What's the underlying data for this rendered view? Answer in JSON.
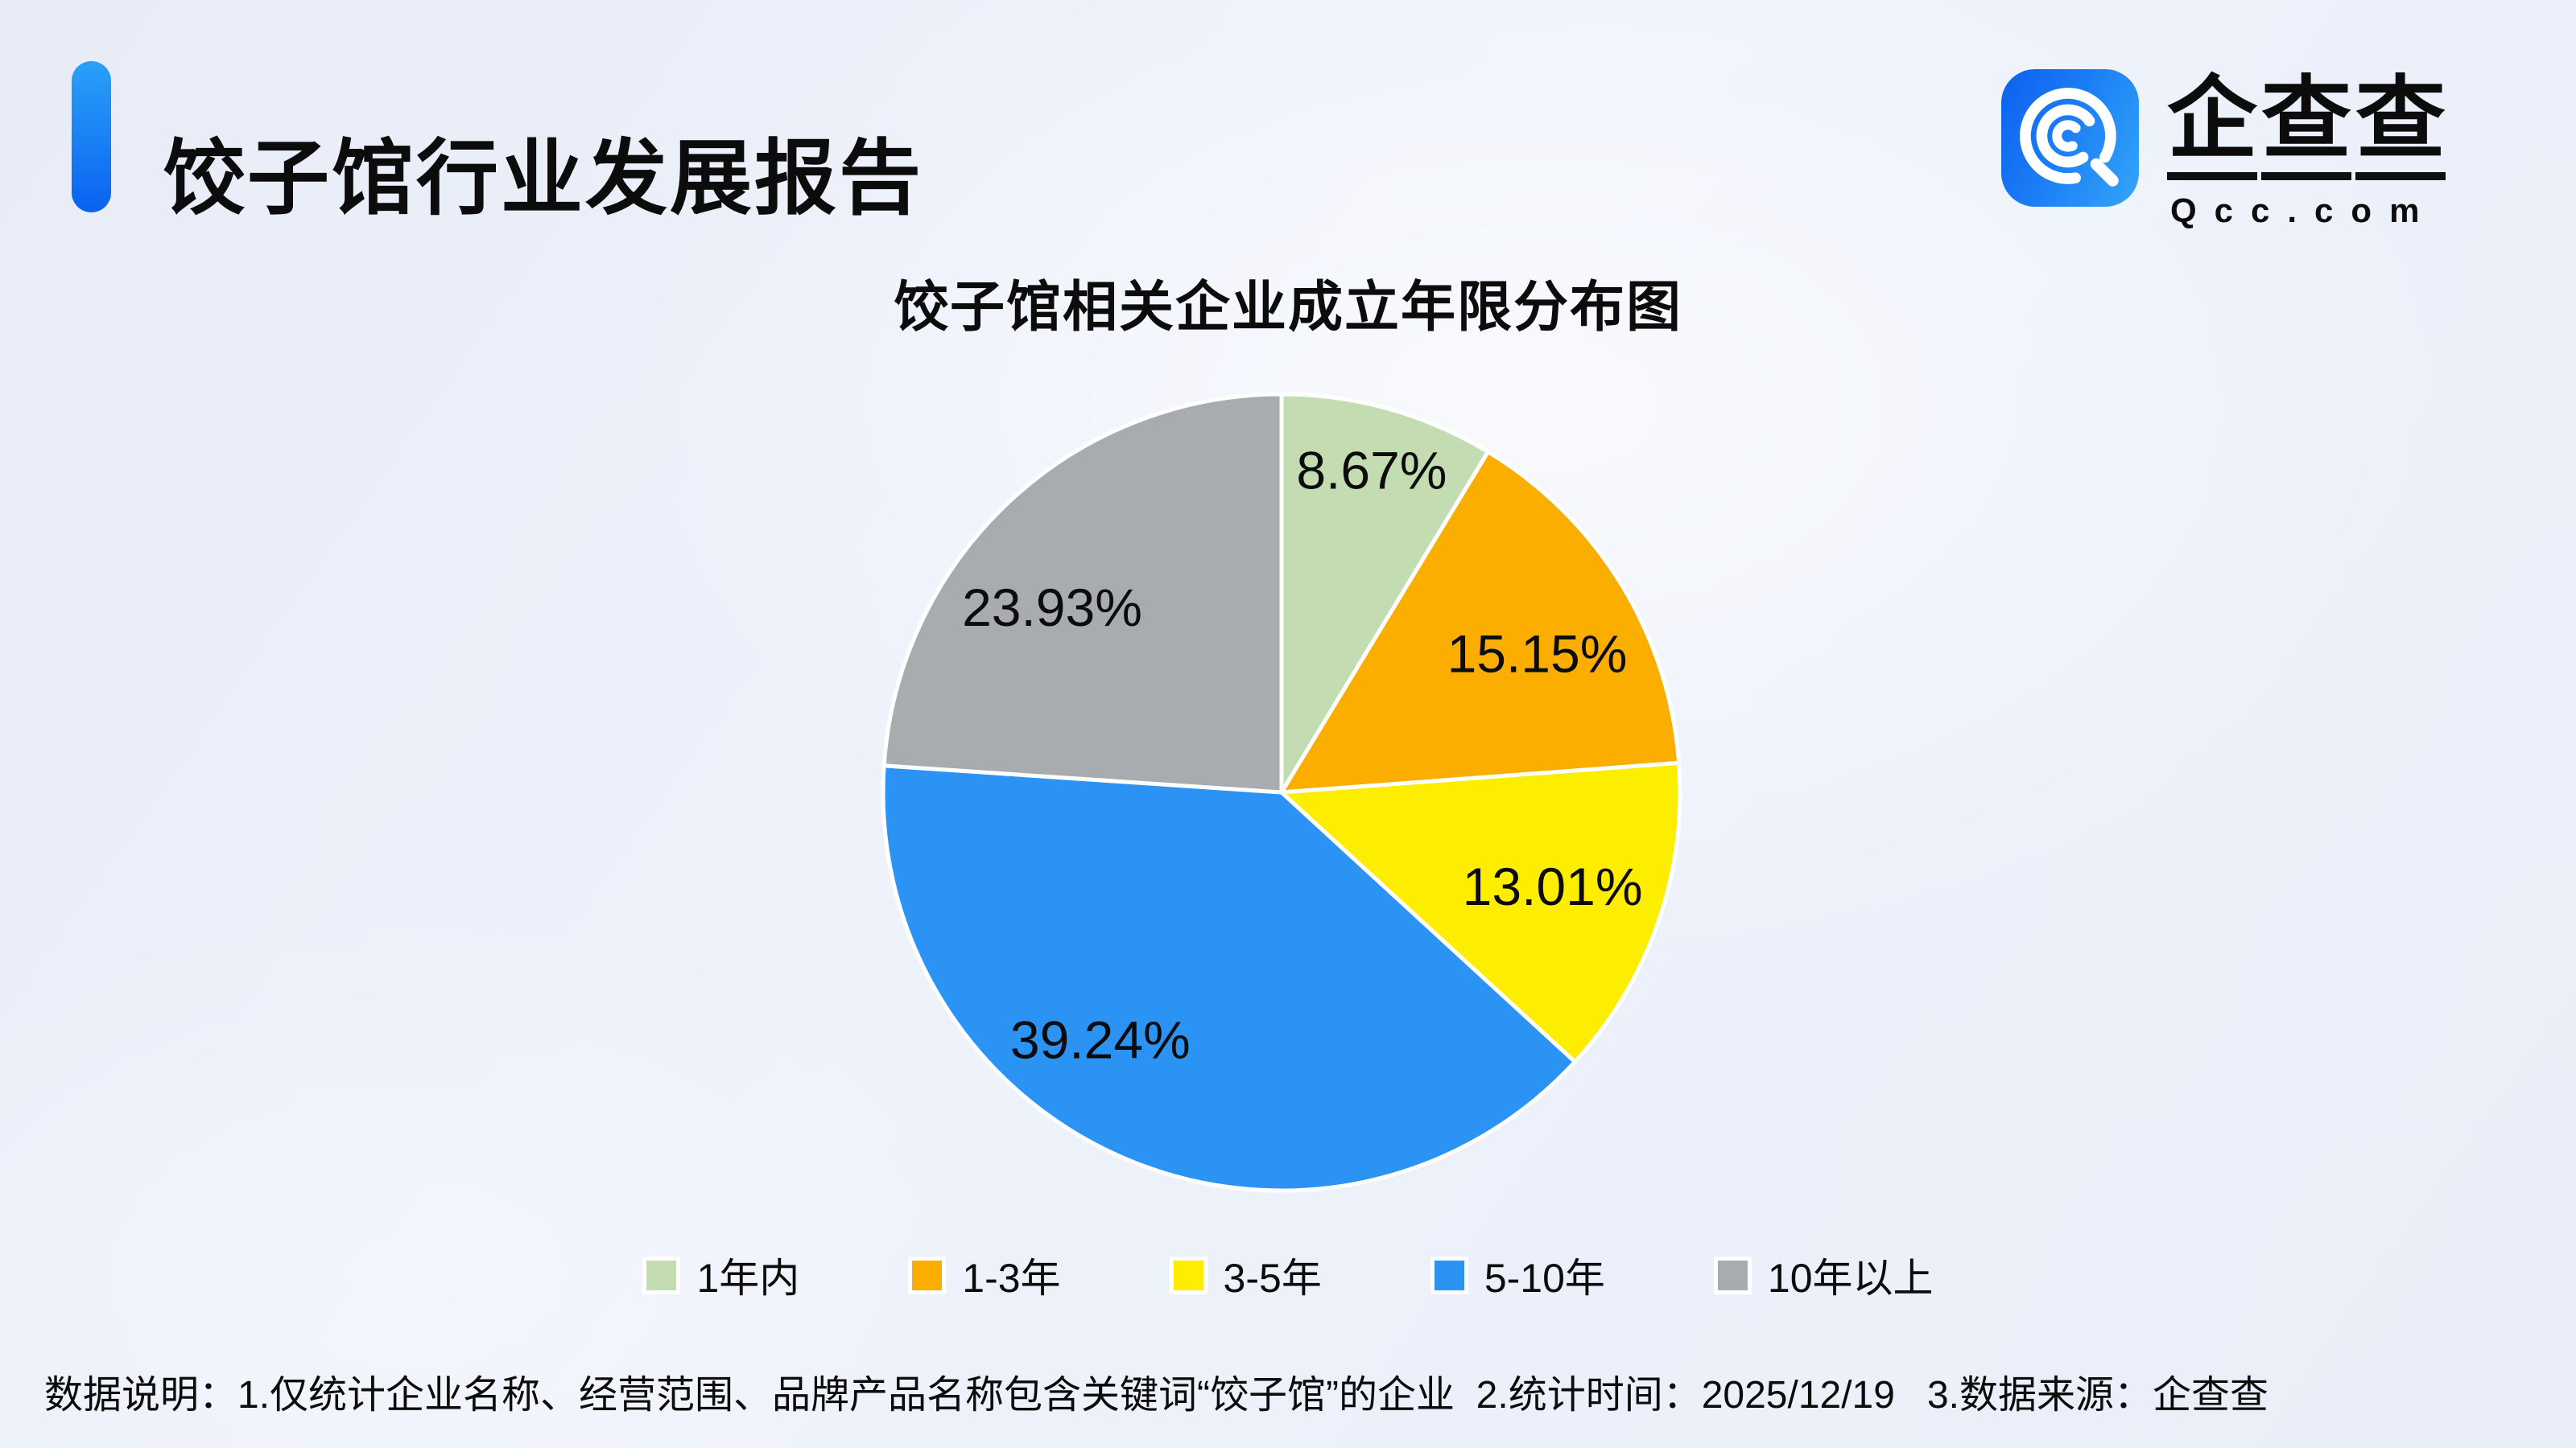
{
  "header": {
    "title": "饺子馆行业发展报告"
  },
  "logo": {
    "brand_cn": "企查查",
    "domain": "Qcc.com",
    "icon": "qcc-magnifier-q-icon",
    "icon_color_from": "#0c60ee",
    "icon_color_to": "#33a6f9"
  },
  "chart_data": {
    "type": "pie",
    "title": "饺子馆相关企业成立年限分布图",
    "unit": "%",
    "start_angle_deg": 0,
    "direction": "clockwise",
    "legend_position": "bottom",
    "series": [
      {
        "name": "1年内",
        "value": 8.67,
        "label": "8.67%",
        "color": "#c4dcb2"
      },
      {
        "name": "1-3年",
        "value": 15.15,
        "label": "15.15%",
        "color": "#fbae00"
      },
      {
        "name": "3-5年",
        "value": 13.01,
        "label": "13.01%",
        "color": "#fdee00"
      },
      {
        "name": "5-10年",
        "value": 39.24,
        "label": "39.24%",
        "color": "#2b93f3"
      },
      {
        "name": "10年以上",
        "value": 23.93,
        "label": "23.93%",
        "color": "#a8abaf"
      }
    ]
  },
  "footer": {
    "note": "数据说明：1.仅统计企业名称、经营范围、品牌产品名称包含关键词“饺子馆”的企业  2.统计时间：2025/12/19   3.数据来源：企查查"
  }
}
